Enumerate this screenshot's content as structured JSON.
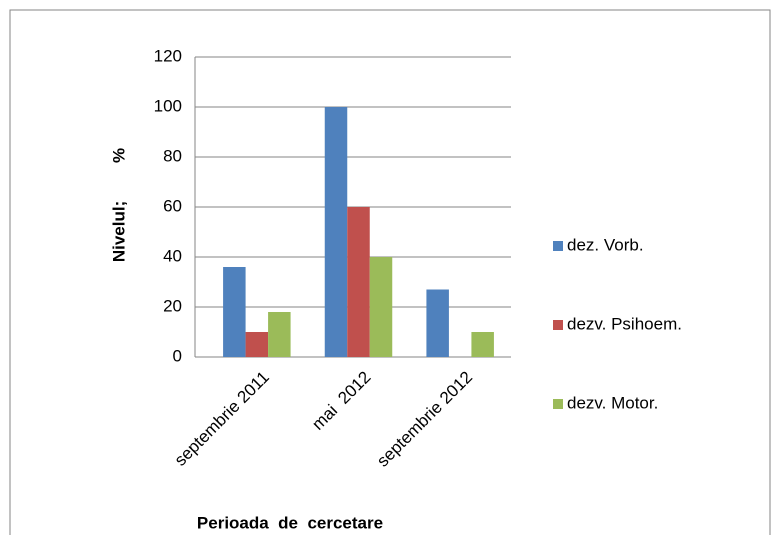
{
  "chart_data": {
    "type": "bar",
    "categories": [
      "septembrie 2011",
      "mai  2012",
      "septembrie 2012"
    ],
    "series": [
      {
        "name": "dez. Vorb.",
        "color": "#4f81bd",
        "values": [
          36,
          100,
          27
        ]
      },
      {
        "name": "dezv. Psihoem.",
        "color": "#c0504d",
        "values": [
          10,
          60,
          0
        ]
      },
      {
        "name": "dezv. Motor.",
        "color": "#9bbb59",
        "values": [
          18,
          40,
          10
        ]
      }
    ],
    "ylabel": "Nivelul;        %",
    "xlabel": "Perioada  de  cercetare",
    "ylim": [
      0,
      120
    ],
    "yticks": [
      0,
      20,
      40,
      60,
      80,
      100,
      120
    ],
    "grid": true,
    "legend": "right"
  }
}
